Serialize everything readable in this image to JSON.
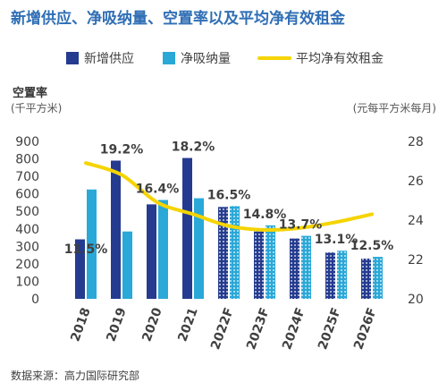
{
  "chart_data": {
    "type": "bar",
    "title": "新增供应、净吸纳量、空置率以及平均净有效租金",
    "ylabel_left": "空置率",
    "unit_left": "(千平方米)",
    "unit_right": "(元每平方米每月)",
    "categories": [
      "2018",
      "2019",
      "2020",
      "2021",
      "2022F",
      "2023F",
      "2024F",
      "2025F",
      "2026F"
    ],
    "forecast_from_index": 4,
    "series": [
      {
        "name": "新增供应",
        "type": "bar",
        "axis": "left",
        "color": "#243b8f",
        "values": [
          340,
          790,
          540,
          805,
          525,
          385,
          345,
          265,
          230
        ]
      },
      {
        "name": "净吸纳量",
        "type": "bar",
        "axis": "left",
        "color": "#2aa8d8",
        "values": [
          625,
          385,
          565,
          575,
          530,
          420,
          360,
          275,
          240
        ]
      },
      {
        "name": "平均净有效租金",
        "type": "line",
        "axis": "right",
        "color": "#f5d400",
        "values": [
          26.9,
          26.3,
          24.9,
          24.3,
          23.7,
          23.5,
          23.6,
          23.9,
          24.3
        ]
      }
    ],
    "vacancy_labels": [
      "11.5%",
      "19.2%",
      "16.4%",
      "18.2%",
      "16.5%",
      "14.8%",
      "13.7%",
      "13.1%",
      "12.5%"
    ],
    "yticks_left": [
      "0",
      "100",
      "200",
      "300",
      "400",
      "500",
      "600",
      "700",
      "800",
      "900"
    ],
    "yticks_right": [
      "20",
      "22",
      "24",
      "26",
      "28"
    ],
    "ylim_left": [
      0,
      900
    ],
    "ylim_right": [
      20,
      28
    ],
    "legend_position": "top",
    "grid": false,
    "source": "数据来源：高力国际研究部"
  }
}
